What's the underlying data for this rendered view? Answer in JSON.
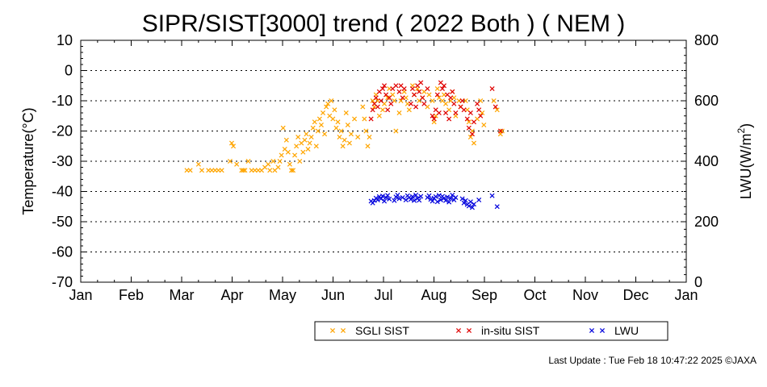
{
  "chart_data": {
    "type": "scatter",
    "title": "SIPR/SIST[3000] trend ( 2022 Both ) ( NEM )",
    "ylabel_left": "Temperature(°C)",
    "ylabel_right_base": "LWU(W/m",
    "ylabel_right_sup": "2",
    "ylabel_right_tail": ")",
    "x_ticks": [
      "Jan",
      "Feb",
      "Mar",
      "Apr",
      "May",
      "Jun",
      "Jul",
      "Aug",
      "Sep",
      "Oct",
      "Nov",
      "Dec",
      "Jan"
    ],
    "y_left_ticks": [
      "10",
      "0",
      "-10",
      "-20",
      "-30",
      "-40",
      "-50",
      "-60",
      "-70"
    ],
    "y_right_ticks": [
      "800",
      "600",
      "400",
      "200",
      "0"
    ],
    "ylim_left": [
      -70,
      10
    ],
    "ylim_right": [
      0,
      800
    ],
    "x_unit": "day of year",
    "x_range": [
      1,
      366
    ],
    "grid": "horizontal dotted",
    "legend_placement": "bottom-right",
    "series": [
      {
        "name": "SGLI SIST",
        "color": "#ffa500",
        "axis": "left",
        "points": [
          [
            65,
            -33
          ],
          [
            67,
            -33
          ],
          [
            72,
            -31
          ],
          [
            74,
            -33
          ],
          [
            78,
            -33
          ],
          [
            80,
            -33
          ],
          [
            82,
            -33
          ],
          [
            84,
            -33
          ],
          [
            86,
            -33
          ],
          [
            91,
            -30
          ],
          [
            92,
            -24
          ],
          [
            93,
            -25
          ],
          [
            95,
            -31
          ],
          [
            98,
            -33
          ],
          [
            99,
            -33
          ],
          [
            100,
            -33
          ],
          [
            102,
            -30
          ],
          [
            104,
            -33
          ],
          [
            106,
            -33
          ],
          [
            108,
            -33
          ],
          [
            110,
            -33
          ],
          [
            112,
            -32
          ],
          [
            114,
            -31
          ],
          [
            115,
            -33
          ],
          [
            117,
            -30
          ],
          [
            118,
            -33
          ],
          [
            120,
            -32
          ],
          [
            121,
            -30
          ],
          [
            122,
            -28
          ],
          [
            123,
            -19
          ],
          [
            124,
            -26
          ],
          [
            125,
            -23
          ],
          [
            126,
            -27
          ],
          [
            127,
            -31
          ],
          [
            128,
            -33
          ],
          [
            129,
            -33
          ],
          [
            130,
            -28
          ],
          [
            131,
            -25
          ],
          [
            132,
            -22
          ],
          [
            133,
            -30
          ],
          [
            134,
            -24
          ],
          [
            135,
            -27
          ],
          [
            136,
            -23
          ],
          [
            137,
            -21
          ],
          [
            138,
            -26
          ],
          [
            139,
            -24
          ],
          [
            140,
            -22
          ],
          [
            141,
            -19
          ],
          [
            142,
            -17
          ],
          [
            143,
            -25
          ],
          [
            144,
            -20
          ],
          [
            145,
            -16
          ],
          [
            146,
            -18
          ],
          [
            147,
            -14
          ],
          [
            148,
            -21
          ],
          [
            149,
            -12
          ],
          [
            150,
            -11
          ],
          [
            151,
            -15
          ],
          [
            152,
            -10
          ],
          [
            153,
            -16
          ],
          [
            154,
            -13
          ],
          [
            155,
            -19
          ],
          [
            156,
            -17
          ],
          [
            157,
            -22
          ],
          [
            158,
            -20
          ],
          [
            159,
            -25
          ],
          [
            160,
            -23
          ],
          [
            161,
            -14
          ],
          [
            162,
            -18
          ],
          [
            163,
            -24
          ],
          [
            164,
            -21
          ],
          [
            166,
            -16
          ],
          [
            168,
            -22
          ],
          [
            171,
            -12
          ],
          [
            172,
            -16
          ],
          [
            173,
            -20
          ],
          [
            174,
            -25
          ],
          [
            175,
            -22
          ],
          [
            177,
            -10
          ],
          [
            178,
            -12
          ],
          [
            179,
            -8
          ],
          [
            180,
            -10
          ],
          [
            181,
            -15
          ],
          [
            183,
            -13
          ],
          [
            184,
            -11
          ],
          [
            186,
            -9
          ],
          [
            187,
            -6
          ],
          [
            189,
            -8
          ],
          [
            190,
            -10
          ],
          [
            191,
            -20
          ],
          [
            193,
            -14
          ],
          [
            194,
            -10
          ],
          [
            196,
            -7
          ],
          [
            197,
            -9
          ],
          [
            198,
            -11
          ],
          [
            199,
            -13
          ],
          [
            201,
            -5
          ],
          [
            202,
            -8
          ],
          [
            204,
            -6
          ],
          [
            205,
            -10
          ],
          [
            207,
            -9
          ],
          [
            208,
            -7
          ],
          [
            210,
            -12
          ],
          [
            211,
            -8
          ],
          [
            213,
            -10
          ],
          [
            214,
            -17
          ],
          [
            215,
            -15
          ],
          [
            216,
            -6
          ],
          [
            217,
            -9
          ],
          [
            219,
            -10
          ],
          [
            220,
            -8
          ],
          [
            221,
            -11
          ],
          [
            223,
            -13
          ],
          [
            224,
            -10
          ],
          [
            225,
            -7
          ],
          [
            226,
            -9
          ],
          [
            227,
            -15
          ],
          [
            229,
            -10
          ],
          [
            230,
            -12
          ],
          [
            233,
            -10
          ],
          [
            234,
            -13
          ],
          [
            235,
            -17
          ],
          [
            236,
            -22
          ],
          [
            237,
            -20
          ],
          [
            238,
            -24
          ],
          [
            240,
            -16
          ],
          [
            242,
            -10
          ],
          [
            243,
            -14
          ],
          [
            244,
            -18
          ],
          [
            250,
            -10
          ],
          [
            252,
            -13
          ],
          [
            254,
            -21
          ],
          [
            255,
            -20
          ]
        ]
      },
      {
        "name": "in-situ SIST",
        "color": "#e00000",
        "axis": "left",
        "points": [
          [
            176,
            -16
          ],
          [
            177,
            -13
          ],
          [
            178,
            -11
          ],
          [
            179,
            -9
          ],
          [
            180,
            -12
          ],
          [
            181,
            -7
          ],
          [
            182,
            -10
          ],
          [
            183,
            -6
          ],
          [
            184,
            -5
          ],
          [
            185,
            -8
          ],
          [
            186,
            -13
          ],
          [
            187,
            -9
          ],
          [
            188,
            -11
          ],
          [
            189,
            -6
          ],
          [
            191,
            -5
          ],
          [
            193,
            -7
          ],
          [
            194,
            -5
          ],
          [
            195,
            -9
          ],
          [
            196,
            -6
          ],
          [
            200,
            -11
          ],
          [
            201,
            -6
          ],
          [
            202,
            -8
          ],
          [
            203,
            -12
          ],
          [
            204,
            -5
          ],
          [
            205,
            -7
          ],
          [
            206,
            -4
          ],
          [
            207,
            -9
          ],
          [
            208,
            -11
          ],
          [
            210,
            -6
          ],
          [
            213,
            -15
          ],
          [
            214,
            -16
          ],
          [
            215,
            -13
          ],
          [
            216,
            -8
          ],
          [
            217,
            -14
          ],
          [
            218,
            -4
          ],
          [
            219,
            -6
          ],
          [
            220,
            -5
          ],
          [
            221,
            -14
          ],
          [
            222,
            -8
          ],
          [
            223,
            -16
          ],
          [
            224,
            -9
          ],
          [
            225,
            -7
          ],
          [
            226,
            -11
          ],
          [
            227,
            -14
          ],
          [
            230,
            -12
          ],
          [
            231,
            -10
          ],
          [
            232,
            -13
          ],
          [
            234,
            -16
          ],
          [
            235,
            -19
          ],
          [
            236,
            -14
          ],
          [
            237,
            -21
          ],
          [
            238,
            -17
          ],
          [
            240,
            -11
          ],
          [
            241,
            -13
          ],
          [
            242,
            -15
          ],
          [
            249,
            -6
          ],
          [
            251,
            -12
          ],
          [
            254,
            -20
          ]
        ]
      },
      {
        "name": "LWU",
        "color": "#0000dd",
        "axis": "right",
        "points": [
          [
            176,
            268
          ],
          [
            177,
            262
          ],
          [
            178,
            270
          ],
          [
            179,
            278
          ],
          [
            180,
            272
          ],
          [
            181,
            283
          ],
          [
            182,
            276
          ],
          [
            183,
            285
          ],
          [
            184,
            268
          ],
          [
            185,
            280
          ],
          [
            186,
            287
          ],
          [
            187,
            275
          ],
          [
            190,
            270
          ],
          [
            191,
            282
          ],
          [
            192,
            288
          ],
          [
            193,
            276
          ],
          [
            195,
            280
          ],
          [
            197,
            272
          ],
          [
            198,
            286
          ],
          [
            199,
            280
          ],
          [
            200,
            274
          ],
          [
            201,
            283
          ],
          [
            202,
            270
          ],
          [
            203,
            288
          ],
          [
            204,
            277
          ],
          [
            205,
            271
          ],
          [
            206,
            284
          ],
          [
            210,
            280
          ],
          [
            211,
            286
          ],
          [
            212,
            274
          ],
          [
            213,
            268
          ],
          [
            214,
            278
          ],
          [
            215,
            283
          ],
          [
            216,
            266
          ],
          [
            217,
            287
          ],
          [
            218,
            272
          ],
          [
            219,
            284
          ],
          [
            220,
            278
          ],
          [
            221,
            270
          ],
          [
            222,
            282
          ],
          [
            223,
            265
          ],
          [
            224,
            277
          ],
          [
            225,
            288
          ],
          [
            226,
            272
          ],
          [
            227,
            280
          ],
          [
            231,
            276
          ],
          [
            232,
            262
          ],
          [
            233,
            270
          ],
          [
            234,
            257
          ],
          [
            235,
            252
          ],
          [
            236,
            266
          ],
          [
            237,
            247
          ],
          [
            238,
            258
          ],
          [
            241,
            272
          ],
          [
            249,
            286
          ],
          [
            252,
            250
          ]
        ]
      }
    ]
  },
  "footer": {
    "text": "Last Update : Tue Feb 18 10:47:22 2025  ©JAXA"
  }
}
